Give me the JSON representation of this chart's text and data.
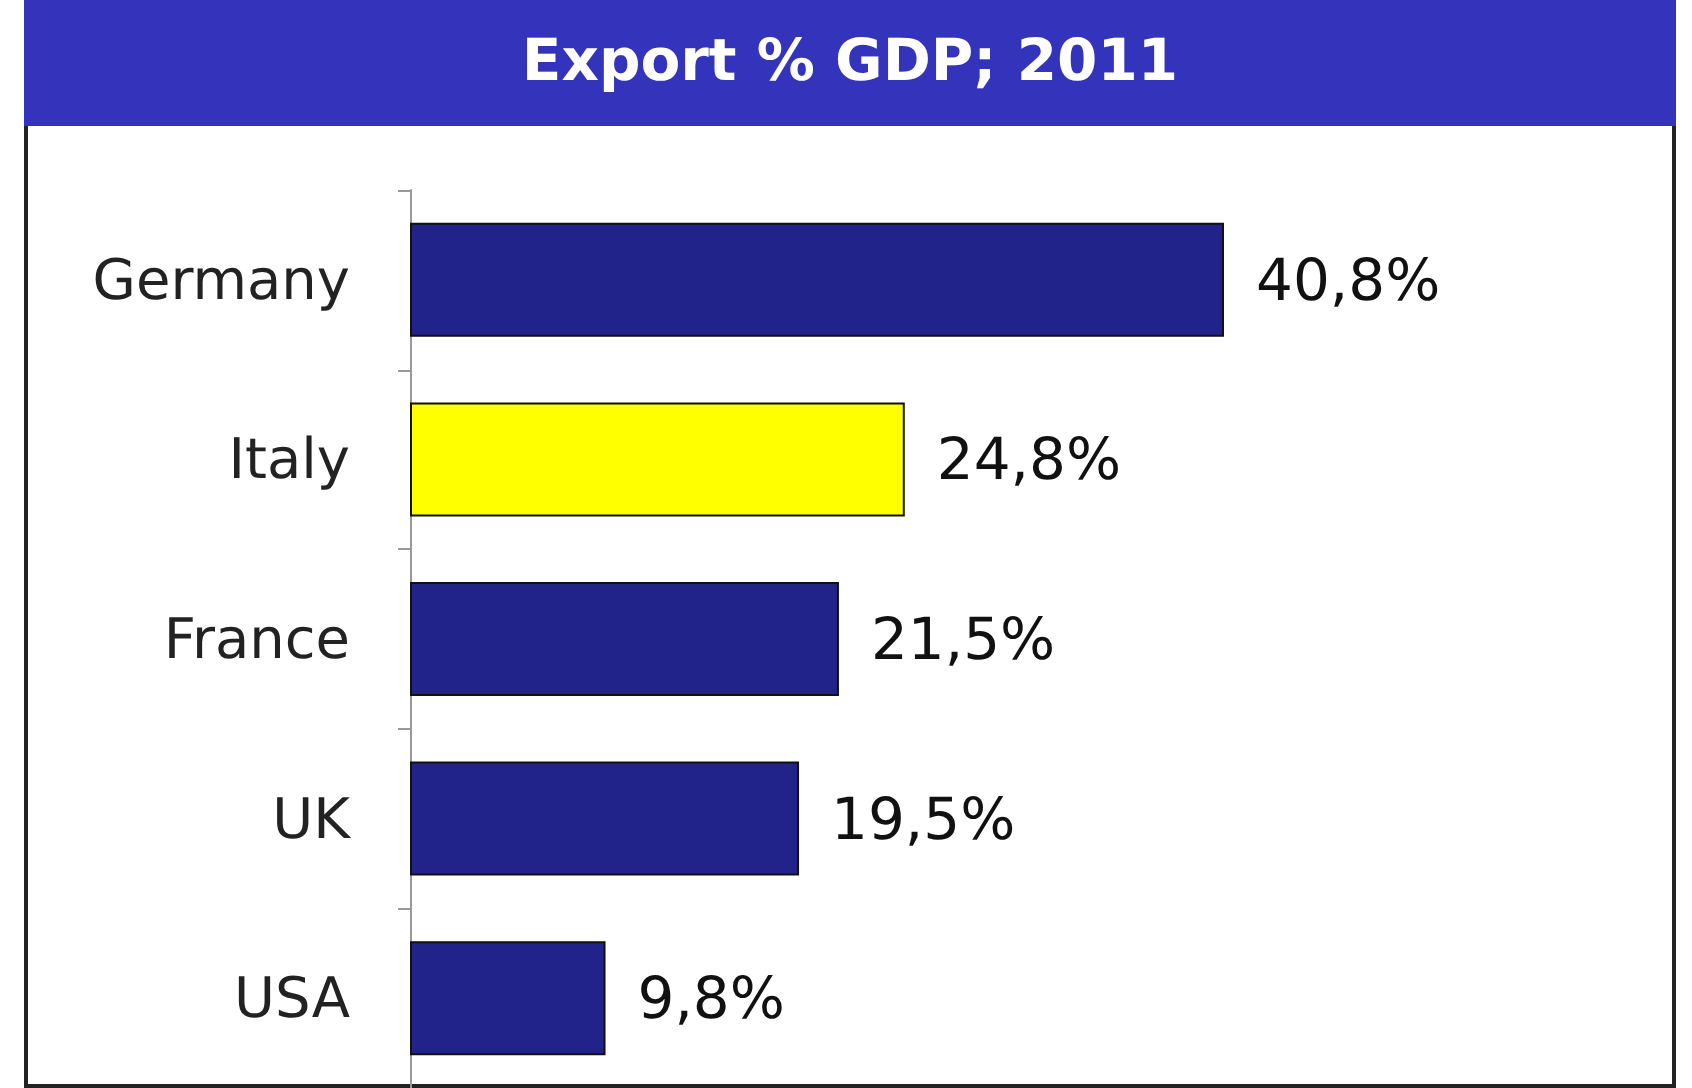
{
  "chart_data": {
    "type": "bar",
    "orientation": "horizontal",
    "title": "Export % GDP; 2011",
    "categories": [
      "Germany",
      "Italy",
      "France",
      "UK",
      "USA"
    ],
    "values": [
      40.8,
      24.8,
      21.5,
      19.5,
      9.8
    ],
    "colors": [
      "#22238a",
      "#ffff00",
      "#22238a",
      "#22238a",
      "#22238a"
    ],
    "value_labels": [
      "40,8%",
      "24,8%",
      "21,5%",
      "19,5%",
      "9,8%"
    ]
  }
}
